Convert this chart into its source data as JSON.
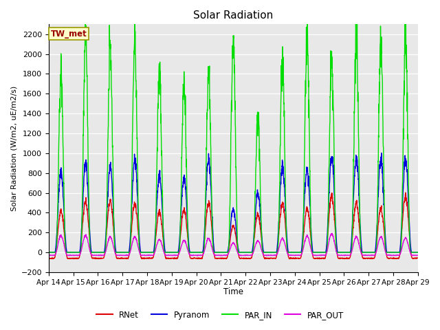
{
  "title": "Solar Radiation",
  "ylabel": "Solar Radiation (W/m2, uE/m2/s)",
  "xlabel": "Time",
  "ylim": [
    -200,
    2300
  ],
  "yticks": [
    -200,
    0,
    200,
    400,
    600,
    800,
    1000,
    1200,
    1400,
    1600,
    1800,
    2000,
    2200
  ],
  "bg_color": "#e8e8e8",
  "legend_label": "TW_met",
  "series_colors": {
    "RNet": "#dd0000",
    "Pyranom": "#0000dd",
    "PAR_IN": "#00dd00",
    "PAR_OUT": "#dd00dd"
  },
  "days": [
    "Apr 14",
    "Apr 15",
    "Apr 16",
    "Apr 17",
    "Apr 18",
    "Apr 19",
    "Apr 20",
    "Apr 21",
    "Apr 22",
    "Apr 23",
    "Apr 24",
    "Apr 25",
    "Apr 26",
    "Apr 27",
    "Apr 28",
    "Apr 29"
  ],
  "day_peaks": {
    "RNet": [
      420,
      510,
      520,
      490,
      410,
      430,
      490,
      270,
      380,
      490,
      440,
      570,
      500,
      440,
      560,
      0
    ],
    "Pyranom": [
      810,
      900,
      870,
      930,
      780,
      760,
      940,
      430,
      600,
      860,
      850,
      970,
      960,
      940,
      940,
      0
    ],
    "PAR_IN": [
      1780,
      2080,
      2030,
      2060,
      1760,
      1690,
      1730,
      2050,
      1340,
      1870,
      2110,
      1940,
      2140,
      2090,
      2090,
      0
    ],
    "PAR_OUT": [
      170,
      170,
      155,
      155,
      130,
      120,
      140,
      95,
      115,
      140,
      165,
      190,
      155,
      160,
      145,
      0
    ]
  },
  "night_base": {
    "RNet": -60,
    "Pyranom": 0,
    "PAR_IN": 0,
    "PAR_OUT": -30
  },
  "day_width": {
    "RNet": 0.55,
    "Pyranom": 0.5,
    "PAR_IN": 0.4,
    "PAR_OUT": 0.52
  },
  "n_days": 15,
  "pts_per_day": 144
}
